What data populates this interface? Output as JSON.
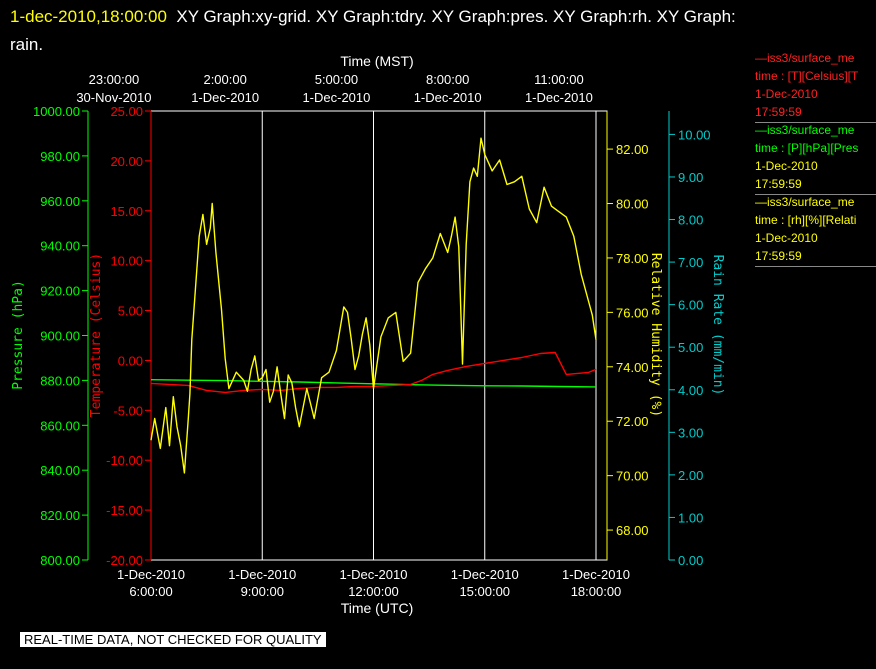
{
  "title": {
    "timestamp": "1-dec-2010,18:00:00",
    "text": "XY Graph:xy-grid.  XY Graph:tdry.  XY Graph:pres.  XY Graph:rh.  XY Graph: rain."
  },
  "colors": {
    "background": "#000000",
    "grid": "#ffffff",
    "temperature": "#ff0000",
    "pressure": "#00ff00",
    "humidity": "#ffff00",
    "rain": "#00cccc"
  },
  "legend": [
    {
      "line": "—iss3/surface_me",
      "fields": "time : [T][Celsius][T",
      "date": "1-Dec-2010",
      "time": "17:59:59"
    },
    {
      "line": "—iss3/surface_me",
      "fields": "time : [P][hPa][Pres",
      "date": "1-Dec-2010",
      "time": "17:59:59"
    },
    {
      "line": "—iss3/surface_me",
      "fields": "time : [rh][%][Relati",
      "date": "1-Dec-2010",
      "time": "17:59:59"
    }
  ],
  "footer": "REAL-TIME DATA, NOT CHECKED FOR QUALITY",
  "chart_data": {
    "type": "line",
    "grid": true,
    "x_range_hours_utc": [
      6,
      18
    ],
    "top_axis": {
      "label": "Time (MST)",
      "ticks": [
        {
          "x": 5,
          "time": "23:00:00",
          "date": "30-Nov-2010"
        },
        {
          "x": 8,
          "time": "2:00:00",
          "date": "1-Dec-2010"
        },
        {
          "x": 11,
          "time": "5:00:00",
          "date": "1-Dec-2010"
        },
        {
          "x": 14,
          "time": "8:00:00",
          "date": "1-Dec-2010"
        },
        {
          "x": 17,
          "time": "11:00:00",
          "date": "1-Dec-2010"
        }
      ]
    },
    "bottom_axis": {
      "label": "Time (UTC)",
      "ticks": [
        {
          "x": 6,
          "date": "1-Dec-2010",
          "time": "6:00:00"
        },
        {
          "x": 9,
          "date": "1-Dec-2010",
          "time": "9:00:00"
        },
        {
          "x": 12,
          "date": "1-Dec-2010",
          "time": "12:00:00"
        },
        {
          "x": 15,
          "date": "1-Dec-2010",
          "time": "15:00:00"
        },
        {
          "x": 18,
          "date": "1-Dec-2010",
          "time": "18:00:00"
        }
      ]
    },
    "y_axes": [
      {
        "id": "pressure",
        "label": "Pressure (hPa)",
        "range": [
          800,
          1000
        ],
        "ticks": [
          "800.00",
          "820.00",
          "840.00",
          "860.00",
          "880.00",
          "900.00",
          "920.00",
          "940.00",
          "960.00",
          "980.00",
          "1000.00"
        ]
      },
      {
        "id": "temperature",
        "label": "Temperature (Celsius)",
        "range": [
          -20,
          25
        ],
        "ticks": [
          "-20.00",
          "-15.00",
          "-10.00",
          "-5.00",
          "0.00",
          "5.00",
          "10.00",
          "15.00",
          "20.00",
          "25.00"
        ]
      },
      {
        "id": "humidity",
        "label": "Relative Humidity (%)",
        "range": [
          66.9,
          83.4
        ],
        "ticks": [
          "68.00",
          "70.00",
          "72.00",
          "74.00",
          "76.00",
          "78.00",
          "80.00",
          "82.00"
        ]
      },
      {
        "id": "rain",
        "label": "Rain Rate (mm/min)",
        "range": [
          0,
          10.55
        ],
        "ticks": [
          "0.00",
          "1.00",
          "2.00",
          "3.00",
          "4.00",
          "5.00",
          "6.00",
          "7.00",
          "8.00",
          "9.00",
          "10.00"
        ]
      }
    ],
    "series": [
      {
        "id": "temperature",
        "x": [
          6,
          6.5,
          7,
          7.5,
          8,
          8.5,
          9,
          9.5,
          10,
          10.5,
          11,
          11.5,
          12,
          12.5,
          13,
          13.3,
          13.6,
          14,
          14.5,
          15,
          15.5,
          16,
          16.5,
          16.9,
          17.2,
          17.5,
          17.8,
          18
        ],
        "y": [
          -2.3,
          -2.4,
          -2.5,
          -3.0,
          -3.2,
          -3.0,
          -2.9,
          -3.0,
          -2.8,
          -2.7,
          -2.7,
          -2.6,
          -2.6,
          -2.5,
          -2.4,
          -2.0,
          -1.4,
          -1.0,
          -0.6,
          -0.3,
          0,
          0.3,
          0.7,
          0.8,
          -1.4,
          -1.3,
          -1.2,
          -0.9
        ]
      },
      {
        "id": "pressure",
        "x": [
          6,
          7,
          8,
          9,
          10,
          11,
          12,
          13,
          14,
          15,
          16,
          17,
          18
        ],
        "y": [
          880.3,
          880.1,
          879.9,
          879.6,
          879.3,
          878.9,
          878.5,
          878.1,
          877.8,
          877.6,
          877.5,
          877.3,
          877.1
        ]
      },
      {
        "id": "humidity",
        "x": [
          6,
          6.1,
          6.25,
          6.4,
          6.5,
          6.6,
          6.7,
          6.8,
          6.9,
          7.0,
          7.05,
          7.1,
          7.2,
          7.3,
          7.4,
          7.5,
          7.6,
          7.65,
          7.75,
          7.9,
          8.0,
          8.1,
          8.3,
          8.5,
          8.6,
          8.7,
          8.8,
          8.9,
          9.0,
          9.1,
          9.2,
          9.3,
          9.4,
          9.5,
          9.6,
          9.7,
          9.8,
          9.9,
          10.0,
          10.2,
          10.4,
          10.6,
          10.8,
          11.0,
          11.1,
          11.2,
          11.3,
          11.4,
          11.5,
          11.6,
          11.7,
          11.8,
          11.9,
          12.0,
          12.2,
          12.4,
          12.6,
          12.8,
          13.0,
          13.2,
          13.4,
          13.6,
          13.8,
          14.0,
          14.1,
          14.2,
          14.3,
          14.4,
          14.5,
          14.6,
          14.7,
          14.8,
          14.9,
          15.0,
          15.2,
          15.4,
          15.6,
          15.8,
          16.0,
          16.2,
          16.4,
          16.6,
          16.8,
          17.0,
          17.2,
          17.4,
          17.6,
          17.8,
          17.9,
          18.0
        ],
        "y": [
          71.3,
          72.1,
          71.0,
          72.5,
          71.1,
          72.9,
          71.8,
          71.1,
          70.1,
          72.0,
          73.0,
          75.0,
          76.9,
          78.8,
          79.6,
          78.5,
          79.1,
          80.0,
          78.2,
          76.1,
          74.3,
          73.2,
          73.8,
          73.5,
          73.1,
          73.9,
          74.4,
          73.5,
          73.6,
          73.9,
          72.7,
          73.1,
          74.0,
          73.0,
          72.1,
          73.7,
          73.4,
          72.5,
          71.8,
          73.2,
          72.1,
          73.6,
          73.8,
          74.6,
          75.4,
          76.2,
          76.0,
          75.0,
          73.9,
          74.4,
          75.2,
          75.8,
          74.8,
          73.2,
          75.1,
          75.8,
          76.0,
          74.2,
          74.5,
          77.1,
          77.6,
          78.0,
          78.9,
          78.2,
          78.8,
          79.5,
          78.4,
          74.1,
          78.5,
          80.8,
          81.3,
          81.0,
          82.4,
          81.8,
          81.2,
          81.6,
          80.7,
          80.8,
          81.0,
          79.8,
          79.3,
          80.6,
          79.9,
          79.7,
          79.5,
          78.8,
          77.4,
          76.4,
          75.9,
          75.0
        ]
      }
    ]
  }
}
